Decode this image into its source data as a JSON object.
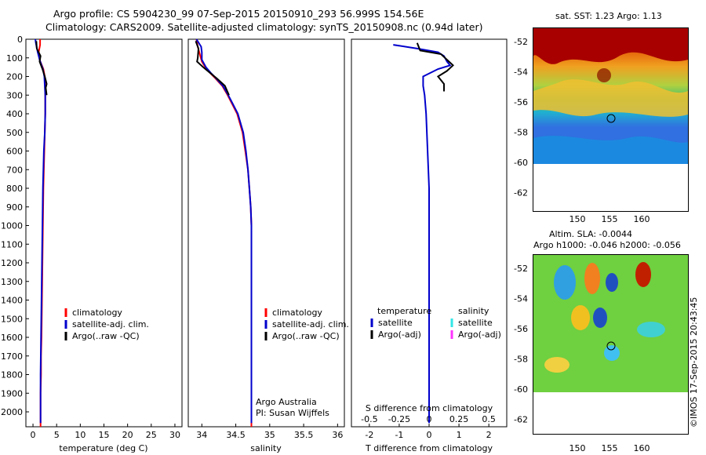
{
  "header": {
    "line1": "Argo profile: CS 5904230_99 07-Sep-2015 20150910_293 56.999S 154.56E",
    "line2": "Climatology: CARS2009. Satellite-adjusted climatology: synTS_20150908.nc (0.94d later)"
  },
  "colors": {
    "climatology": "#ff0000",
    "satellite": "#0000cc",
    "argo": "#000000",
    "sal_satellite": "#33e6e6",
    "sal_argo": "#ff33ff"
  },
  "panels": {
    "temperature": {
      "xlabel": "temperature (deg C)",
      "xticks": [
        "0",
        "5",
        "10",
        "15",
        "20",
        "25",
        "30"
      ],
      "legend": [
        "climatology",
        "satellite-adj. clim.",
        "Argo(..raw -QC)"
      ]
    },
    "salinity": {
      "xlabel": "salinity",
      "xticks": [
        "34",
        "34.5",
        "35",
        "35.5",
        "36"
      ],
      "legend": [
        "climatology",
        "satellite-adj. clim.",
        "Argo(..raw -QC)"
      ],
      "note1": "Argo Australia",
      "note2": "PI: Susan Wijffels"
    },
    "difference": {
      "xlabel": "T difference from climatology",
      "xlabel_top": "S difference from climatology",
      "xticks_t": [
        "-2",
        "-1",
        "0",
        "1",
        "2"
      ],
      "xticks_s": [
        "-0.5",
        "-0.25",
        "0",
        "0.25",
        "0.5"
      ],
      "legend_t_title": "temperature",
      "legend_s_title": "salinity",
      "legend_t": [
        "satellite",
        "Argo(-adj)"
      ],
      "legend_s": [
        "satellite",
        "Argo(-adj)"
      ]
    },
    "depth_ticks": [
      "0",
      "100",
      "200",
      "300",
      "400",
      "500",
      "600",
      "700",
      "800",
      "900",
      "1000",
      "1100",
      "1200",
      "1300",
      "1400",
      "1500",
      "1600",
      "1700",
      "1800",
      "1900",
      "2000"
    ]
  },
  "maps": {
    "sst": {
      "title": "sat. SST: 1.23 Argo: 1.13",
      "yticks": [
        "-52",
        "-54",
        "-56",
        "-58",
        "-60",
        "-62"
      ],
      "xticks": [
        "150",
        "155",
        "160"
      ]
    },
    "sla": {
      "title1": "Altim. SLA: -0.0044",
      "title2": "Argo h1000: -0.046 h2000: -0.056",
      "yticks": [
        "-52",
        "-54",
        "-56",
        "-58",
        "-60",
        "-62"
      ],
      "xticks": [
        "150",
        "155",
        "160"
      ]
    }
  },
  "footer": {
    "stamp": "©IMOS 17-Sep-2015 20:43:45"
  },
  "chart_data": [
    {
      "type": "line",
      "xlabel": "temperature (deg C)",
      "ylabel": "",
      "xlim": [
        -1.5,
        31.5
      ],
      "ylim": [
        2080,
        0
      ],
      "series": [
        {
          "name": "climatology",
          "x": [
            1.5,
            1.5,
            1.2,
            1.4,
            2.2,
            2.5,
            2.6,
            2.6,
            2.5,
            2.4,
            2.2,
            2.1,
            2.0,
            1.9,
            1.8,
            1.7,
            1.7,
            1.6,
            1.6
          ],
          "y": [
            0,
            30,
            70,
            110,
            160,
            200,
            300,
            400,
            500,
            600,
            800,
            1000,
            1200,
            1400,
            1600,
            1700,
            1800,
            1900,
            2080
          ]
        },
        {
          "name": "satellite-adj. clim.",
          "x": [
            0.5,
            0.6,
            1.0,
            1.4,
            2.1,
            2.4,
            2.6,
            2.6,
            2.5,
            2.3,
            2.1,
            2.0,
            1.9,
            1.8,
            1.7,
            1.6,
            1.6
          ],
          "y": [
            0,
            20,
            70,
            110,
            160,
            200,
            300,
            400,
            500,
            600,
            800,
            1000,
            1200,
            1400,
            1600,
            1800,
            2060
          ]
        },
        {
          "name": "Argo(..raw -QC)",
          "x": [
            0.7,
            0.8,
            1.6,
            1.4,
            2.0,
            2.5,
            2.9,
            2.7,
            2.8,
            2.9
          ],
          "y": [
            10,
            50,
            90,
            120,
            160,
            200,
            240,
            260,
            280,
            300
          ]
        }
      ]
    },
    {
      "type": "line",
      "xlabel": "salinity",
      "ylabel": "",
      "xlim": [
        33.8,
        36.1
      ],
      "ylim": [
        2080,
        0
      ],
      "series": [
        {
          "name": "climatology",
          "x": [
            33.92,
            33.94,
            33.97,
            34.0,
            34.05,
            34.12,
            34.2,
            34.3,
            34.38,
            34.45,
            34.52,
            34.6,
            34.64,
            34.68,
            34.7,
            34.72,
            34.73,
            34.73,
            34.73,
            34.73
          ],
          "y": [
            0,
            40,
            80,
            120,
            150,
            180,
            210,
            250,
            300,
            350,
            400,
            500,
            600,
            700,
            800,
            900,
            1000,
            1200,
            1500,
            2080
          ]
        },
        {
          "name": "satellite-adj. clim.",
          "x": [
            33.92,
            33.99,
            34.0,
            34.0,
            34.06,
            34.13,
            34.21,
            34.31,
            34.39,
            34.46,
            34.53,
            34.61,
            34.65,
            34.68,
            34.7,
            34.72,
            34.73,
            34.73,
            34.73
          ],
          "y": [
            0,
            40,
            70,
            110,
            150,
            180,
            210,
            250,
            300,
            350,
            400,
            500,
            600,
            700,
            800,
            900,
            1000,
            1500,
            2060
          ]
        },
        {
          "name": "Argo(..raw -QC)",
          "x": [
            33.91,
            33.95,
            33.94,
            33.93,
            34.02,
            34.12,
            34.22,
            34.34,
            34.4
          ],
          "y": [
            10,
            50,
            100,
            120,
            150,
            180,
            210,
            250,
            300
          ]
        }
      ]
    },
    {
      "type": "line",
      "xlabel": "T difference from climatology",
      "ylabel": "",
      "xlim": [
        -2.6,
        2.6
      ],
      "ylim": [
        2080,
        0
      ],
      "series": [
        {
          "name": "satellite",
          "x": [
            -1.2,
            -0.4,
            0.3,
            0.5,
            0.6,
            0.7,
            0.3,
            -0.2,
            -0.2,
            -0.15,
            -0.1,
            -0.05,
            0,
            0,
            0
          ],
          "y": [
            30,
            50,
            70,
            90,
            120,
            140,
            160,
            200,
            250,
            300,
            400,
            600,
            800,
            1200,
            2060
          ]
        },
        {
          "name": "Argo(-adj)",
          "x": [
            -0.4,
            -0.3,
            0.4,
            0.6,
            0.8,
            0.6,
            0.3,
            0.5,
            0.5
          ],
          "y": [
            20,
            60,
            80,
            110,
            140,
            170,
            200,
            240,
            280
          ]
        }
      ]
    }
  ]
}
